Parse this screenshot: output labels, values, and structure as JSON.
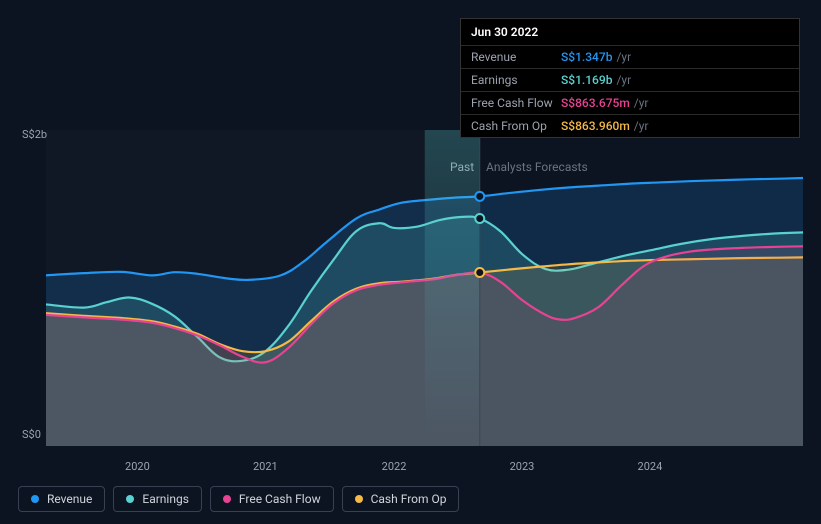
{
  "chart": {
    "type": "area",
    "background_color": "#0d1421",
    "plot_background": "#121a2a",
    "divider_color": "#3a4556",
    "grid_color": "#1f2937",
    "hover_x": 0.573,
    "x_ticks": [
      "2020",
      "2021",
      "2022",
      "2023",
      "2024"
    ],
    "x_tick_positions": [
      0.097,
      0.266,
      0.436,
      0.605,
      0.774
    ],
    "y_label_top": "S$2b",
    "y_label_bottom": "S$0",
    "region_past": "Past",
    "region_forecast": "Analysts Forecasts",
    "series": [
      {
        "key": "revenue",
        "label": "Revenue",
        "color": "#2196f3",
        "fill_opacity": 0.18,
        "points": [
          [
            0.0,
            0.54
          ],
          [
            0.05,
            0.547
          ],
          [
            0.1,
            0.551
          ],
          [
            0.14,
            0.54
          ],
          [
            0.17,
            0.55
          ],
          [
            0.2,
            0.545
          ],
          [
            0.24,
            0.53
          ],
          [
            0.27,
            0.526
          ],
          [
            0.31,
            0.54
          ],
          [
            0.34,
            0.583
          ],
          [
            0.37,
            0.644
          ],
          [
            0.41,
            0.72
          ],
          [
            0.44,
            0.748
          ],
          [
            0.47,
            0.77
          ],
          [
            0.51,
            0.78
          ],
          [
            0.54,
            0.786
          ],
          [
            0.573,
            0.79
          ],
          [
            0.61,
            0.8
          ],
          [
            0.65,
            0.81
          ],
          [
            0.69,
            0.818
          ],
          [
            0.73,
            0.824
          ],
          [
            0.77,
            0.83
          ],
          [
            0.81,
            0.834
          ],
          [
            0.85,
            0.838
          ],
          [
            0.89,
            0.841
          ],
          [
            0.93,
            0.844
          ],
          [
            0.97,
            0.846
          ],
          [
            1.0,
            0.848
          ]
        ]
      },
      {
        "key": "earnings",
        "label": "Earnings",
        "color": "#5ad1d1",
        "fill_opacity": 0.18,
        "points": [
          [
            0.0,
            0.448
          ],
          [
            0.05,
            0.438
          ],
          [
            0.08,
            0.455
          ],
          [
            0.11,
            0.47
          ],
          [
            0.14,
            0.45
          ],
          [
            0.17,
            0.41
          ],
          [
            0.2,
            0.345
          ],
          [
            0.23,
            0.28
          ],
          [
            0.26,
            0.27
          ],
          [
            0.29,
            0.3
          ],
          [
            0.32,
            0.38
          ],
          [
            0.35,
            0.49
          ],
          [
            0.38,
            0.59
          ],
          [
            0.41,
            0.68
          ],
          [
            0.44,
            0.705
          ],
          [
            0.46,
            0.69
          ],
          [
            0.49,
            0.694
          ],
          [
            0.52,
            0.715
          ],
          [
            0.55,
            0.725
          ],
          [
            0.573,
            0.72
          ],
          [
            0.6,
            0.68
          ],
          [
            0.63,
            0.605
          ],
          [
            0.66,
            0.56
          ],
          [
            0.69,
            0.558
          ],
          [
            0.72,
            0.575
          ],
          [
            0.76,
            0.6
          ],
          [
            0.8,
            0.62
          ],
          [
            0.84,
            0.64
          ],
          [
            0.88,
            0.655
          ],
          [
            0.92,
            0.665
          ],
          [
            0.96,
            0.672
          ],
          [
            1.0,
            0.676
          ]
        ]
      },
      {
        "key": "cash_from_op",
        "label": "Cash From Op",
        "color": "#f5b947",
        "fill_opacity": 0.13,
        "points": [
          [
            0.0,
            0.42
          ],
          [
            0.05,
            0.412
          ],
          [
            0.1,
            0.405
          ],
          [
            0.14,
            0.395
          ],
          [
            0.17,
            0.378
          ],
          [
            0.2,
            0.355
          ],
          [
            0.23,
            0.322
          ],
          [
            0.26,
            0.3
          ],
          [
            0.29,
            0.3
          ],
          [
            0.32,
            0.33
          ],
          [
            0.35,
            0.395
          ],
          [
            0.38,
            0.458
          ],
          [
            0.41,
            0.498
          ],
          [
            0.44,
            0.515
          ],
          [
            0.47,
            0.52
          ],
          [
            0.51,
            0.529
          ],
          [
            0.54,
            0.541
          ],
          [
            0.573,
            0.549
          ],
          [
            0.61,
            0.558
          ],
          [
            0.65,
            0.567
          ],
          [
            0.69,
            0.575
          ],
          [
            0.73,
            0.581
          ],
          [
            0.77,
            0.586
          ],
          [
            0.81,
            0.589
          ],
          [
            0.85,
            0.591
          ],
          [
            0.89,
            0.593
          ],
          [
            0.93,
            0.595
          ],
          [
            0.97,
            0.596
          ],
          [
            1.0,
            0.597
          ]
        ]
      },
      {
        "key": "free_cash_flow",
        "label": "Free Cash Flow",
        "color": "#e84393",
        "fill_opacity": 0.1,
        "points": [
          [
            0.0,
            0.415
          ],
          [
            0.05,
            0.407
          ],
          [
            0.1,
            0.4
          ],
          [
            0.14,
            0.39
          ],
          [
            0.17,
            0.373
          ],
          [
            0.2,
            0.35
          ],
          [
            0.23,
            0.318
          ],
          [
            0.26,
            0.282
          ],
          [
            0.29,
            0.265
          ],
          [
            0.32,
            0.31
          ],
          [
            0.35,
            0.385
          ],
          [
            0.38,
            0.452
          ],
          [
            0.41,
            0.493
          ],
          [
            0.44,
            0.51
          ],
          [
            0.47,
            0.518
          ],
          [
            0.51,
            0.527
          ],
          [
            0.54,
            0.54
          ],
          [
            0.573,
            0.548
          ],
          [
            0.6,
            0.52
          ],
          [
            0.63,
            0.46
          ],
          [
            0.66,
            0.415
          ],
          [
            0.68,
            0.4
          ],
          [
            0.7,
            0.406
          ],
          [
            0.73,
            0.44
          ],
          [
            0.76,
            0.508
          ],
          [
            0.79,
            0.57
          ],
          [
            0.82,
            0.6
          ],
          [
            0.85,
            0.615
          ],
          [
            0.88,
            0.622
          ],
          [
            0.92,
            0.627
          ],
          [
            0.96,
            0.63
          ],
          [
            1.0,
            0.632
          ]
        ]
      }
    ]
  },
  "tooltip": {
    "date": "Jun 30 2022",
    "rows": [
      {
        "label": "Revenue",
        "value": "S$1.347b",
        "unit": "/yr",
        "color": "#2196f3"
      },
      {
        "label": "Earnings",
        "value": "S$1.169b",
        "unit": "/yr",
        "color": "#5ad1d1"
      },
      {
        "label": "Free Cash Flow",
        "value": "S$863.675m",
        "unit": "/yr",
        "color": "#e84393"
      },
      {
        "label": "Cash From Op",
        "value": "S$863.960m",
        "unit": "/yr",
        "color": "#f5b947"
      }
    ]
  },
  "legend": {
    "items": [
      {
        "label": "Revenue",
        "color": "#2196f3"
      },
      {
        "label": "Earnings",
        "color": "#5ad1d1"
      },
      {
        "label": "Free Cash Flow",
        "color": "#e84393"
      },
      {
        "label": "Cash From Op",
        "color": "#f5b947"
      }
    ]
  }
}
